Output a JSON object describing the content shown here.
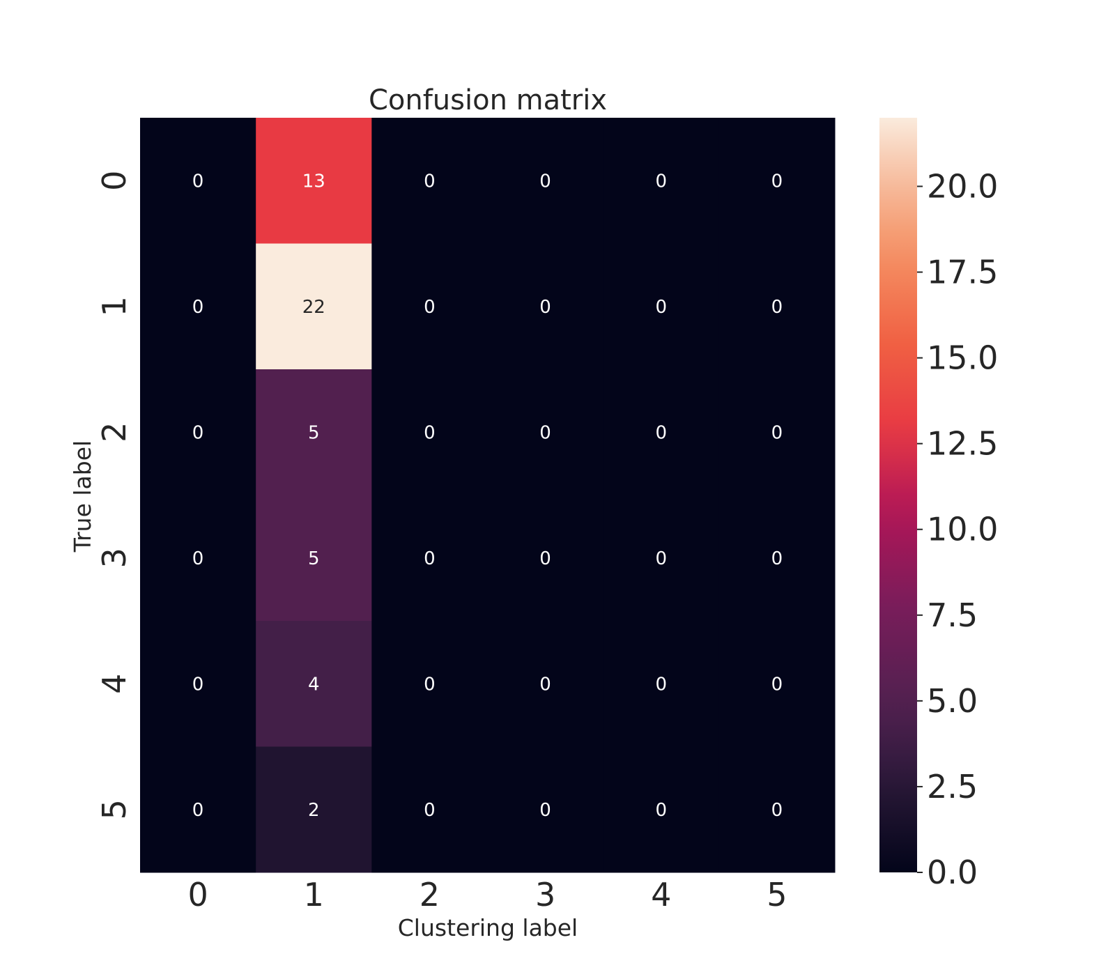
{
  "chart_data": {
    "type": "heatmap",
    "title": "Confusion matrix",
    "xlabel": "Clustering label",
    "ylabel": "True label",
    "x_categories": [
      "0",
      "1",
      "2",
      "3",
      "4",
      "5"
    ],
    "y_categories": [
      "0",
      "1",
      "2",
      "3",
      "4",
      "5"
    ],
    "values": [
      [
        0,
        13,
        0,
        0,
        0,
        0
      ],
      [
        0,
        22,
        0,
        0,
        0,
        0
      ],
      [
        0,
        5,
        0,
        0,
        0,
        0
      ],
      [
        0,
        5,
        0,
        0,
        0,
        0
      ],
      [
        0,
        4,
        0,
        0,
        0,
        0
      ],
      [
        0,
        2,
        0,
        0,
        0,
        0
      ]
    ],
    "annotations": true,
    "colormap": "rocket",
    "colorbar": {
      "range": [
        0,
        22
      ],
      "ticks": [
        0.0,
        2.5,
        5.0,
        7.5,
        10.0,
        12.5,
        15.0,
        17.5,
        20.0
      ],
      "tick_labels": [
        "0.0",
        "2.5",
        "5.0",
        "7.5",
        "10.0",
        "12.5",
        "15.0",
        "17.5",
        "20.0"
      ],
      "placement": "right"
    },
    "grid": false
  }
}
